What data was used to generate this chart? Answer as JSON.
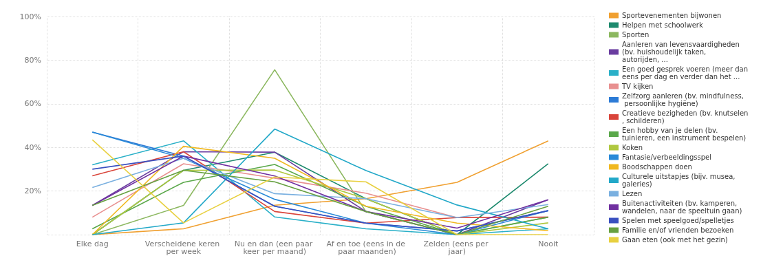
{
  "chart_data": {
    "type": "line",
    "categories": [
      "Elke dag",
      "Verscheidene keren per week",
      "Nu en dan (een paar keer per maand)",
      "Af en toe (eens in de paar maanden)",
      "Zelden (eens per jaar)",
      "Nooit"
    ],
    "series": [
      {
        "name": "Sportevenementen bijwonen",
        "color": "#f0a030",
        "values": [
          0,
          2.7,
          13.5,
          16.5,
          24,
          43
        ]
      },
      {
        "name": "Helpen met schoolwerk",
        "color": "#1e8a6e",
        "values": [
          0,
          29.5,
          37.8,
          16.5,
          0,
          32.5
        ]
      },
      {
        "name": "Sporten",
        "color": "#8cb860",
        "values": [
          0,
          13.4,
          75.6,
          10.6,
          0,
          8
        ]
      },
      {
        "name": "Aanleren van levensvaardigheden (bv. huishoudelijk taken, autorijden, ...",
        "color": "#6a3da0",
        "values": [
          13.4,
          38,
          37.8,
          10.6,
          0,
          16
        ]
      },
      {
        "name": "Een goed gesprek voeren (meer dan eens per dag en verder dan het ...",
        "color": "#2ab0c8",
        "values": [
          32,
          43,
          8.1,
          2.7,
          0,
          2.7
        ]
      },
      {
        "name": "TV kijken",
        "color": "#e89090",
        "values": [
          8,
          32.5,
          25.9,
          19,
          7.8,
          8
        ]
      },
      {
        "name": "Zelfzorg aanleren (bv. mindfulness, persoonlijke hygiëne)",
        "color": "#2c7bd6",
        "values": [
          47,
          36,
          13,
          5.3,
          1.7,
          11
        ]
      },
      {
        "name": "Creatieve bezigheden (bv. knutselen, schilderen)",
        "color": "#d9443a",
        "values": [
          27,
          38,
          10.6,
          5.3,
          7.8,
          8
        ]
      },
      {
        "name": "Een hobby van je delen (bv. tuinieren, een instrument bespelen)",
        "color": "#5aa84a",
        "values": [
          2.7,
          24,
          32.2,
          13,
          0,
          8
        ]
      },
      {
        "name": "Koken",
        "color": "#b0c840",
        "values": [
          0,
          29.5,
          29.6,
          16.5,
          0,
          5.4
        ]
      },
      {
        "name": "Fantasie/verbeeldingsspel",
        "color": "#2a8ad8",
        "values": [
          47,
          35,
          16.2,
          5.3,
          0,
          11
        ]
      },
      {
        "name": "Boodschappen doen",
        "color": "#f0b820",
        "values": [
          0,
          40.5,
          35,
          13,
          5.3,
          1.8
        ]
      },
      {
        "name": "Culturele uitstapjes (bijv. musea, galeries)",
        "color": "#22a8c8",
        "values": [
          0,
          5.4,
          48.4,
          29.4,
          13.6,
          2.7
        ]
      },
      {
        "name": "Lezen",
        "color": "#7ab0e0",
        "values": [
          21.6,
          35,
          18.8,
          16.5,
          7.8,
          13.8
        ]
      },
      {
        "name": "Buitenactiviteiten (bv. kamperen, wandelen, naar de speeltuin gaan)",
        "color": "#7030a0",
        "values": [
          13.4,
          36,
          26.9,
          10.6,
          3,
          16
        ]
      },
      {
        "name": "Spelen met speelgoed/spelletjes",
        "color": "#3a50c0",
        "values": [
          30,
          36,
          13,
          5.3,
          1.7,
          11
        ]
      },
      {
        "name": "Familie en/of vrienden bezoeken",
        "color": "#66a040",
        "values": [
          13.4,
          29.5,
          24.2,
          10.6,
          0,
          13
        ]
      },
      {
        "name": "Gaan eten (ook met het gezin)",
        "color": "#e8d040",
        "values": [
          43.5,
          5.4,
          26.4,
          24.2,
          0,
          0
        ]
      }
    ],
    "ylim": [
      0,
      100
    ],
    "yticks": [
      {
        "value": 0,
        "label": null
      },
      {
        "value": 20,
        "label": "20%"
      },
      {
        "value": 40,
        "label": "40%"
      },
      {
        "value": 60,
        "label": "60%"
      },
      {
        "value": 80,
        "label": "80%"
      },
      {
        "value": 100,
        "label": "100%"
      }
    ],
    "grid": true,
    "legend": "right",
    "marker": "none",
    "line_style": "solid"
  }
}
